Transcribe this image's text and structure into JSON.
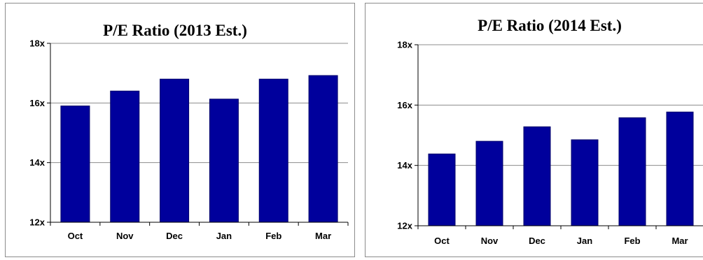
{
  "colors": {
    "bar": "#00009c",
    "bar_border": "#00006a",
    "gridline": "#8c8c8c",
    "axis": "#000000"
  },
  "chart_data": [
    {
      "type": "bar",
      "title": "P/E  Ratio (2013 Est.)",
      "categories": [
        "Oct",
        "Nov",
        "Dec",
        "Jan",
        "Feb",
        "Mar"
      ],
      "values": [
        15.9,
        16.4,
        16.8,
        16.13,
        16.8,
        16.92
      ],
      "ylim": [
        12,
        18
      ],
      "yticks": [
        12,
        14,
        16,
        18
      ],
      "ytick_labels": [
        "12x",
        "14x",
        "16x",
        "18x"
      ],
      "grid": true,
      "xlabel": "",
      "ylabel": ""
    },
    {
      "type": "bar",
      "title": "P/E Ratio (2014 Est.)",
      "categories": [
        "Oct",
        "Nov",
        "Dec",
        "Jan",
        "Feb",
        "Mar"
      ],
      "values": [
        14.38,
        14.8,
        15.28,
        14.85,
        15.58,
        15.77
      ],
      "ylim": [
        12,
        18
      ],
      "yticks": [
        12,
        14,
        16,
        18
      ],
      "ytick_labels": [
        "12x",
        "14x",
        "16x",
        "18x"
      ],
      "grid": true,
      "xlabel": "",
      "ylabel": ""
    }
  ]
}
